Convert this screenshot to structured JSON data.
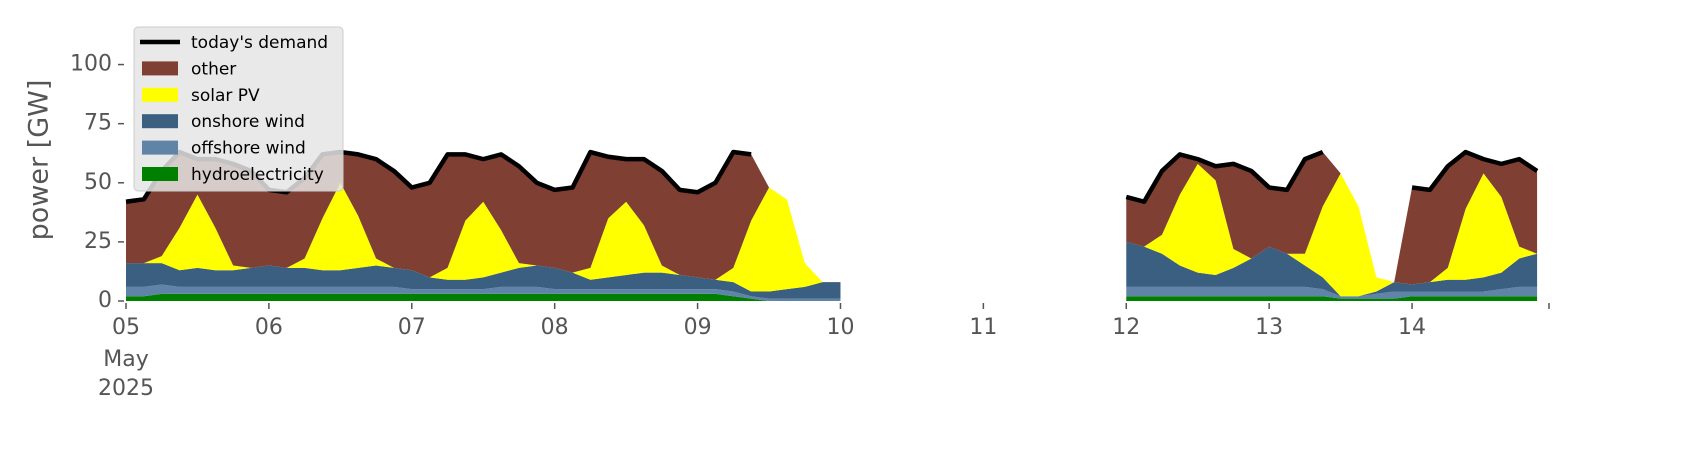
{
  "chart_data": {
    "type": "stacked-area",
    "ylabel": "power [GW]",
    "x": [
      "2025-05-05T00:00",
      "2025-05-05T03:00",
      "2025-05-05T06:00",
      "2025-05-05T09:00",
      "2025-05-05T12:00",
      "2025-05-05T15:00",
      "2025-05-05T18:00",
      "2025-05-05T21:00",
      "2025-05-06T00:00",
      "2025-05-06T03:00",
      "2025-05-06T06:00",
      "2025-05-06T09:00",
      "2025-05-06T12:00",
      "2025-05-06T15:00",
      "2025-05-06T18:00",
      "2025-05-06T21:00",
      "2025-05-07T00:00",
      "2025-05-07T03:00",
      "2025-05-07T06:00",
      "2025-05-07T09:00",
      "2025-05-07T12:00",
      "2025-05-07T15:00",
      "2025-05-07T18:00",
      "2025-05-07T21:00",
      "2025-05-08T00:00",
      "2025-05-08T03:00",
      "2025-05-08T06:00",
      "2025-05-08T09:00",
      "2025-05-08T12:00",
      "2025-05-08T15:00",
      "2025-05-08T18:00",
      "2025-05-08T21:00",
      "2025-05-09T00:00",
      "2025-05-09T03:00",
      "2025-05-09T06:00",
      "2025-05-09T09:00",
      "2025-05-09T12:00",
      "2025-05-09T15:00",
      "2025-05-09T18:00",
      "2025-05-09T21:00",
      "2025-05-10T00:00",
      "2025-05-11T00:00",
      "2025-05-12T00:00",
      "2025-05-12T03:00",
      "2025-05-12T06:00",
      "2025-05-12T09:00",
      "2025-05-12T12:00",
      "2025-05-12T15:00",
      "2025-05-12T18:00",
      "2025-05-12T21:00",
      "2025-05-13T00:00",
      "2025-05-13T03:00",
      "2025-05-13T06:00",
      "2025-05-13T09:00",
      "2025-05-13T12:00",
      "2025-05-13T15:00",
      "2025-05-13T18:00",
      "2025-05-13T21:00",
      "2025-05-14T00:00",
      "2025-05-14T03:00",
      "2025-05-14T06:00",
      "2025-05-14T09:00",
      "2025-05-14T12:00",
      "2025-05-14T15:00",
      "2025-05-14T18:00",
      "2025-05-14T21:00"
    ],
    "series": [
      {
        "name": "today's demand",
        "type": "line",
        "color": "#000000",
        "values": [
          42,
          43,
          55,
          63,
          60,
          60,
          58,
          55,
          47,
          46,
          52,
          62,
          63,
          62,
          60,
          55,
          48,
          50,
          62,
          62,
          60,
          62,
          57,
          50,
          47,
          48,
          63,
          61,
          60,
          60,
          55,
          47,
          46,
          50,
          63,
          62,
          null,
          null,
          null,
          null,
          null,
          null,
          44,
          42,
          55,
          62,
          60,
          57,
          58,
          55,
          48,
          47,
          60,
          63,
          null,
          null,
          null,
          null,
          48,
          47,
          57,
          63,
          60,
          58,
          60,
          55
        ]
      },
      {
        "name": "other",
        "type": "area",
        "color": "#7f3f32",
        "values": [
          26,
          27,
          36,
          32,
          15,
          29,
          43,
          41,
          32,
          32,
          34,
          27,
          13,
          26,
          42,
          41,
          35,
          40,
          48,
          28,
          18,
          32,
          41,
          35,
          33,
          36,
          49,
          26,
          18,
          28,
          40,
          36,
          36,
          41,
          49,
          28,
          0,
          0,
          0,
          0,
          0,
          null,
          19,
          19,
          27,
          17,
          2,
          6,
          36,
          37,
          25,
          27,
          40,
          23,
          0,
          0,
          0,
          0,
          41,
          39,
          43,
          24,
          6,
          14,
          37,
          35
        ]
      },
      {
        "name": "solar PV",
        "type": "area",
        "color": "#ffff00",
        "values": [
          0,
          0,
          3,
          18,
          31,
          18,
          2,
          0,
          0,
          0,
          4,
          22,
          37,
          22,
          3,
          0,
          0,
          0,
          5,
          25,
          32,
          18,
          2,
          0,
          0,
          0,
          5,
          25,
          31,
          20,
          3,
          0,
          0,
          0,
          6,
          30,
          44,
          38,
          10,
          0,
          0,
          null,
          0,
          0,
          8,
          30,
          46,
          40,
          8,
          0,
          0,
          0,
          5,
          30,
          52,
          38,
          6,
          0,
          0,
          0,
          5,
          30,
          44,
          32,
          5,
          0
        ]
      },
      {
        "name": "onshore wind",
        "type": "area",
        "color": "#3a5f80",
        "values": [
          10,
          10,
          9,
          7,
          8,
          7,
          7,
          8,
          9,
          8,
          8,
          7,
          7,
          8,
          9,
          8,
          8,
          5,
          4,
          4,
          5,
          6,
          8,
          9,
          9,
          7,
          4,
          5,
          6,
          7,
          7,
          6,
          5,
          4,
          4,
          2,
          3,
          4,
          5,
          7,
          7,
          null,
          19,
          17,
          14,
          9,
          6,
          5,
          8,
          12,
          17,
          14,
          9,
          5,
          0,
          0,
          1,
          4,
          3,
          4,
          5,
          5,
          6,
          7,
          12,
          14
        ]
      },
      {
        "name": "offshore wind",
        "type": "area",
        "color": "#5f84a8",
        "values": [
          4,
          4,
          4,
          3,
          3,
          3,
          3,
          3,
          3,
          3,
          3,
          3,
          3,
          3,
          3,
          3,
          2,
          2,
          2,
          2,
          2,
          3,
          3,
          3,
          2,
          2,
          2,
          2,
          2,
          2,
          2,
          2,
          2,
          2,
          2,
          1,
          1,
          1,
          1,
          1,
          1,
          null,
          4,
          4,
          4,
          4,
          4,
          4,
          4,
          4,
          4,
          4,
          4,
          3,
          1,
          1,
          2,
          3,
          2,
          2,
          2,
          2,
          2,
          3,
          4,
          4
        ]
      },
      {
        "name": "hydroelectricity",
        "type": "area",
        "color": "#008000",
        "values": [
          2,
          2,
          3,
          3,
          3,
          3,
          3,
          3,
          3,
          3,
          3,
          3,
          3,
          3,
          3,
          3,
          3,
          3,
          3,
          3,
          3,
          3,
          3,
          3,
          3,
          3,
          3,
          3,
          3,
          3,
          3,
          3,
          3,
          3,
          2,
          1,
          0,
          0,
          0,
          0,
          0,
          null,
          2,
          2,
          2,
          2,
          2,
          2,
          2,
          2,
          2,
          2,
          2,
          2,
          1,
          1,
          1,
          1,
          2,
          2,
          2,
          2,
          2,
          2,
          2,
          2
        ]
      }
    ],
    "xlim": [
      "2025-05-05T00:00",
      "2025-05-14T23:00"
    ],
    "xticks": [
      {
        "value": "2025-05-05T00:00",
        "label": "05"
      },
      {
        "value": "2025-05-06T00:00",
        "label": "06"
      },
      {
        "value": "2025-05-07T00:00",
        "label": "07"
      },
      {
        "value": "2025-05-08T00:00",
        "label": "08"
      },
      {
        "value": "2025-05-09T00:00",
        "label": "09"
      },
      {
        "value": "2025-05-10T00:00",
        "label": "10"
      },
      {
        "value": "2025-05-11T00:00",
        "label": "11"
      },
      {
        "value": "2025-05-12T00:00",
        "label": "12"
      },
      {
        "value": "2025-05-13T00:00",
        "label": "13"
      },
      {
        "value": "2025-05-14T00:00",
        "label": "14"
      }
    ],
    "xtick_month": "May",
    "xtick_year": "2025",
    "ylim": [
      0,
      118
    ],
    "yticks": [
      0,
      25,
      50,
      75,
      100
    ],
    "grid": false,
    "legend": "upper left"
  }
}
